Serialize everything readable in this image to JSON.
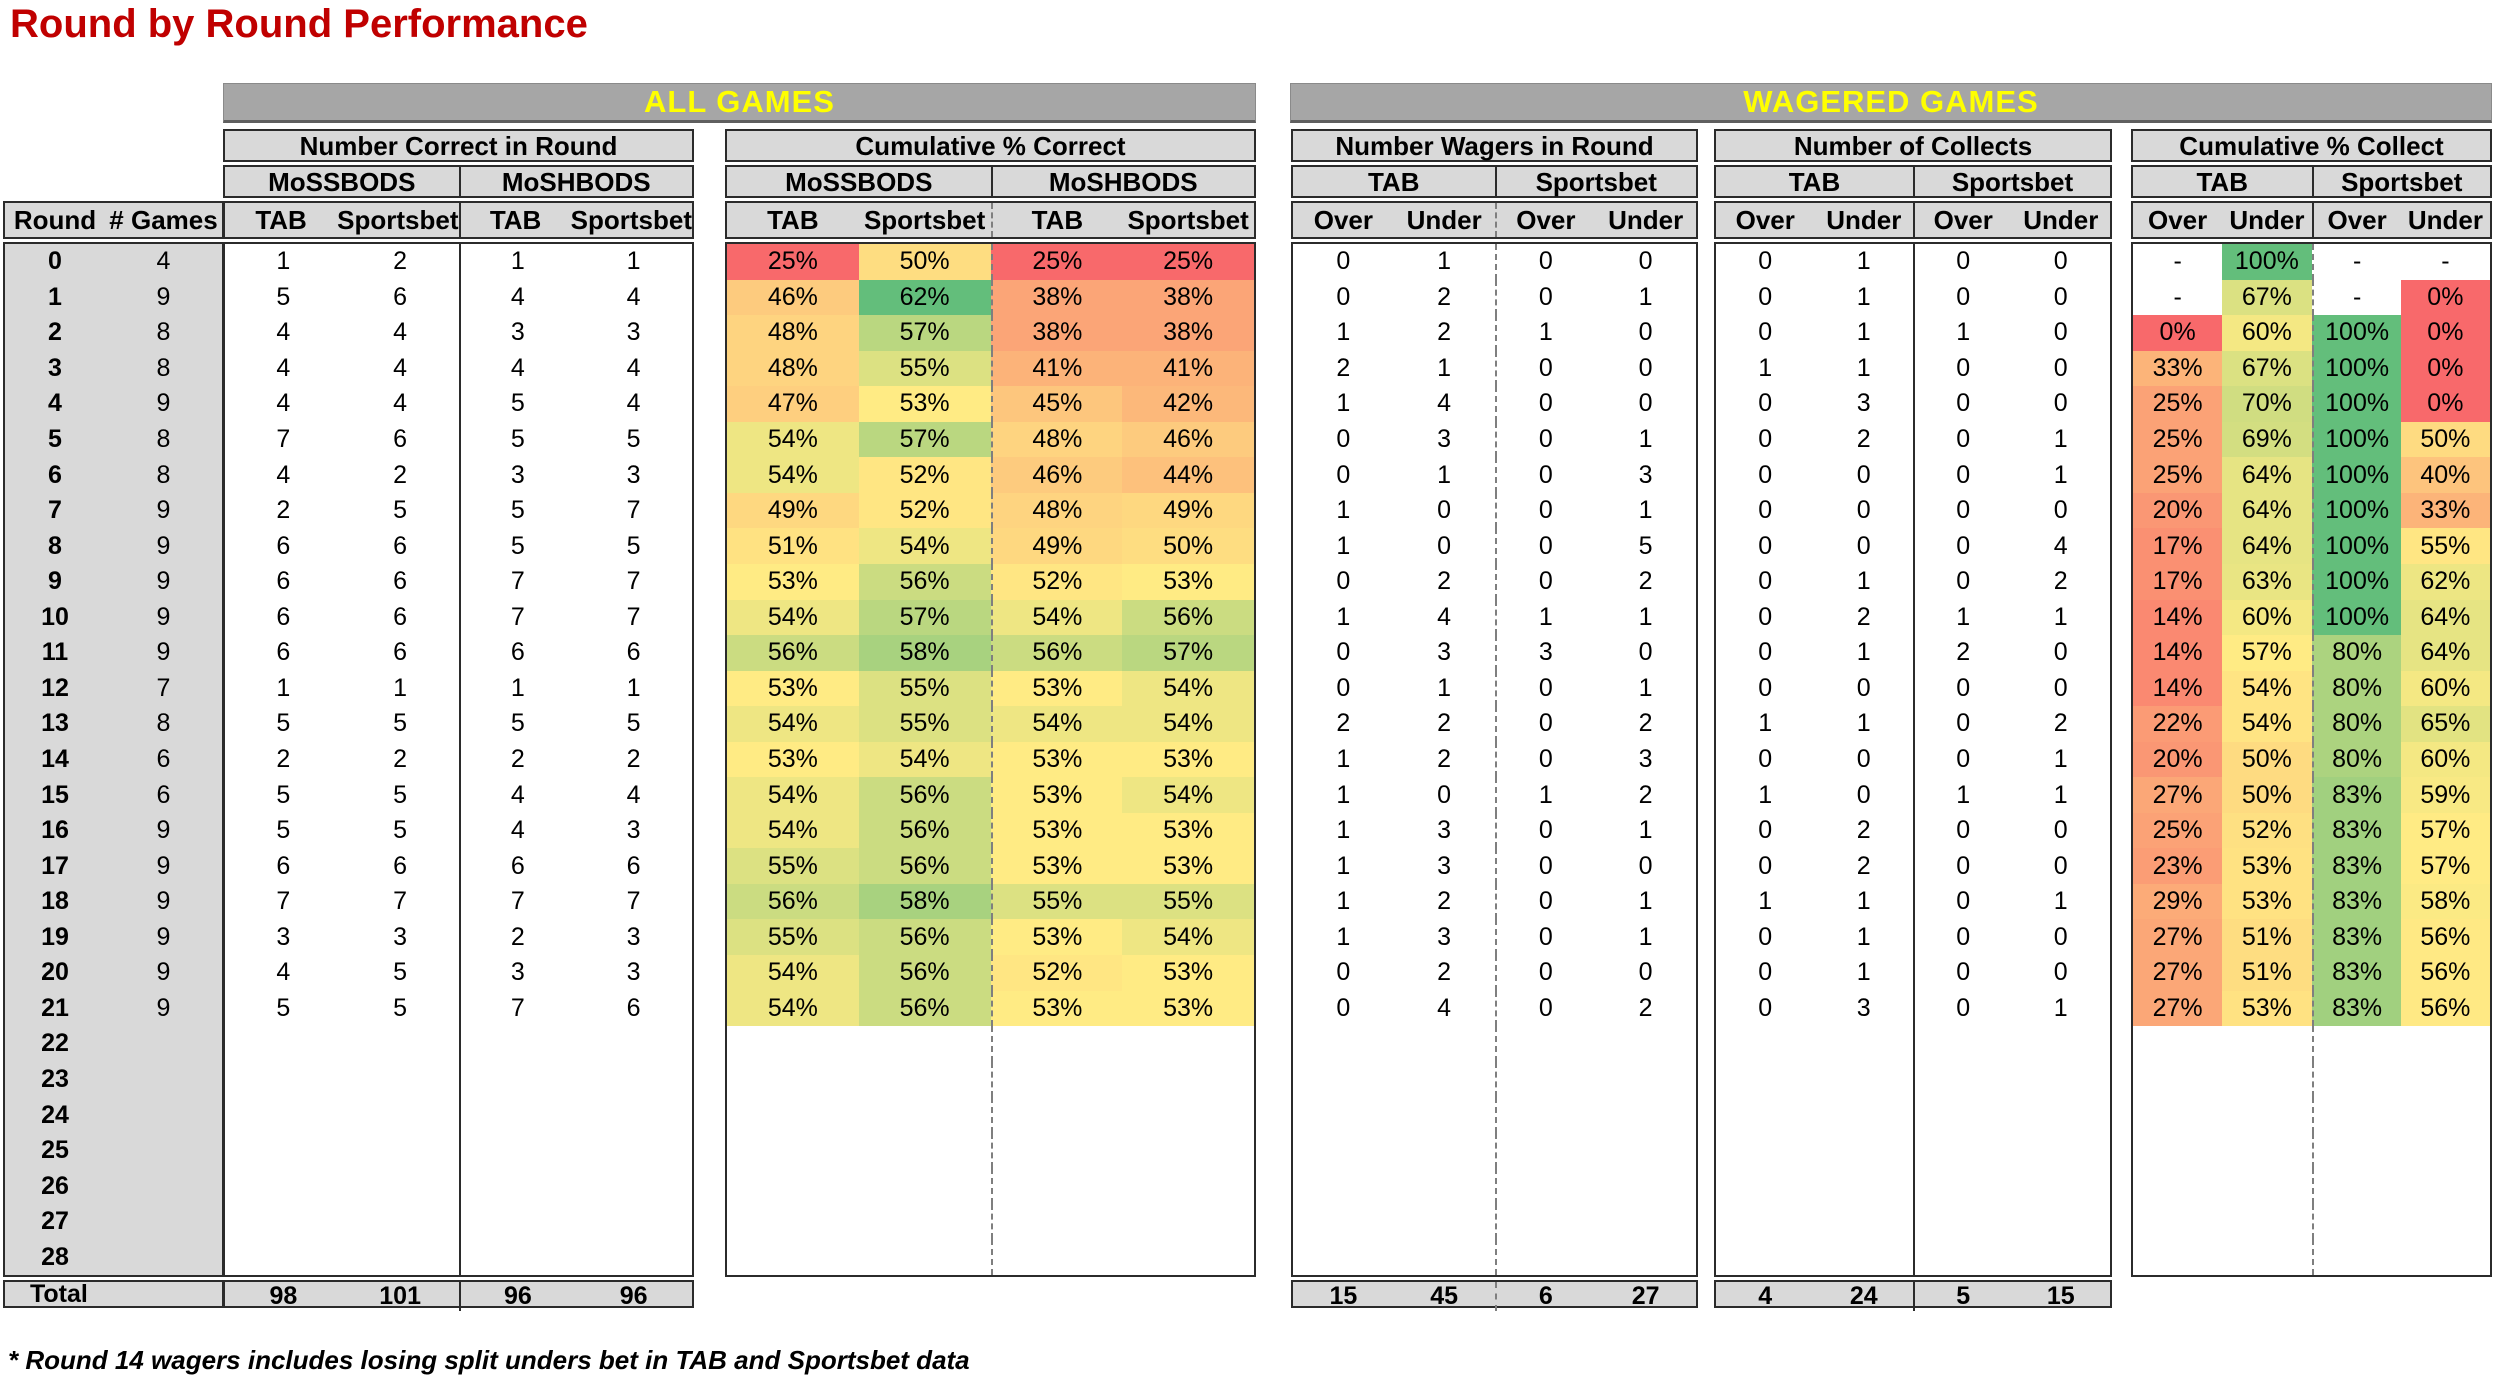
{
  "title": "Round by Round Performance",
  "bands": {
    "all_games": "ALL GAMES",
    "wagered_games": "WAGERED GAMES"
  },
  "row_header": {
    "round": "Round",
    "games": "# Games"
  },
  "sections": {
    "correct": {
      "title": "Number Correct in Round",
      "groups": [
        "MoSSBODS",
        "MoSHBODS"
      ],
      "cols": [
        "TAB",
        "Sportsbet",
        "TAB",
        "Sportsbet"
      ]
    },
    "cum_correct": {
      "title": "Cumulative % Correct",
      "groups": [
        "MoSSBODS",
        "MoSHBODS"
      ],
      "cols": [
        "TAB",
        "Sportsbet",
        "TAB",
        "Sportsbet"
      ]
    },
    "wagers": {
      "title": "Number Wagers in Round",
      "groups": [
        "TAB",
        "Sportsbet"
      ],
      "cols": [
        "Over",
        "Under",
        "Over",
        "Under"
      ]
    },
    "collects": {
      "title": "Number of Collects",
      "groups": [
        "TAB",
        "Sportsbet"
      ],
      "cols": [
        "Over",
        "Under",
        "Over",
        "Under"
      ]
    },
    "cum_collect": {
      "title": "Cumulative % Collect",
      "groups": [
        "TAB",
        "Sportsbet"
      ],
      "cols": [
        "Over",
        "Under",
        "Over",
        "Under"
      ]
    }
  },
  "chart_data": {
    "type": "heatmap",
    "note": "heat colors derive from heat_scales anchors (Excel 3-color scale red/yellow/green)"
  },
  "heat_scales": {
    "cum_correct": {
      "min": 25,
      "mid": 53,
      "max": 62
    },
    "cum_collect": {
      "min": 0,
      "mid": 57,
      "max": 100
    }
  },
  "colors": {
    "title": "#C00000",
    "band_bg": "#A6A6A6",
    "band_text": "#FFFF00",
    "header_bg": "#D9D9D9",
    "scale_red": "#F8696B",
    "scale_yellow": "#FFEB84",
    "scale_green": "#63BE7B"
  },
  "rows": [
    {
      "round": "0",
      "games": "4",
      "correct": [
        "1",
        "2",
        "1",
        "1"
      ],
      "cum_correct": [
        "25%",
        "50%",
        "25%",
        "25%"
      ],
      "wagers": [
        "0",
        "1",
        "0",
        "0"
      ],
      "collects": [
        "0",
        "1",
        "0",
        "0"
      ],
      "cum_collect": [
        "-",
        "100%",
        "-",
        "-"
      ]
    },
    {
      "round": "1",
      "games": "9",
      "correct": [
        "5",
        "6",
        "4",
        "4"
      ],
      "cum_correct": [
        "46%",
        "62%",
        "38%",
        "38%"
      ],
      "wagers": [
        "0",
        "2",
        "0",
        "1"
      ],
      "collects": [
        "0",
        "1",
        "0",
        "0"
      ],
      "cum_collect": [
        "-",
        "67%",
        "-",
        "0%"
      ]
    },
    {
      "round": "2",
      "games": "8",
      "correct": [
        "4",
        "4",
        "3",
        "3"
      ],
      "cum_correct": [
        "48%",
        "57%",
        "38%",
        "38%"
      ],
      "wagers": [
        "1",
        "2",
        "1",
        "0"
      ],
      "collects": [
        "0",
        "1",
        "1",
        "0"
      ],
      "cum_collect": [
        "0%",
        "60%",
        "100%",
        "0%"
      ]
    },
    {
      "round": "3",
      "games": "8",
      "correct": [
        "4",
        "4",
        "4",
        "4"
      ],
      "cum_correct": [
        "48%",
        "55%",
        "41%",
        "41%"
      ],
      "wagers": [
        "2",
        "1",
        "0",
        "0"
      ],
      "collects": [
        "1",
        "1",
        "0",
        "0"
      ],
      "cum_collect": [
        "33%",
        "67%",
        "100%",
        "0%"
      ]
    },
    {
      "round": "4",
      "games": "9",
      "correct": [
        "4",
        "4",
        "5",
        "4"
      ],
      "cum_correct": [
        "47%",
        "53%",
        "45%",
        "42%"
      ],
      "wagers": [
        "1",
        "4",
        "0",
        "0"
      ],
      "collects": [
        "0",
        "3",
        "0",
        "0"
      ],
      "cum_collect": [
        "25%",
        "70%",
        "100%",
        "0%"
      ]
    },
    {
      "round": "5",
      "games": "8",
      "correct": [
        "7",
        "6",
        "5",
        "5"
      ],
      "cum_correct": [
        "54%",
        "57%",
        "48%",
        "46%"
      ],
      "wagers": [
        "0",
        "3",
        "0",
        "1"
      ],
      "collects": [
        "0",
        "2",
        "0",
        "1"
      ],
      "cum_collect": [
        "25%",
        "69%",
        "100%",
        "50%"
      ]
    },
    {
      "round": "6",
      "games": "8",
      "correct": [
        "4",
        "2",
        "3",
        "3"
      ],
      "cum_correct": [
        "54%",
        "52%",
        "46%",
        "44%"
      ],
      "wagers": [
        "0",
        "1",
        "0",
        "3"
      ],
      "collects": [
        "0",
        "0",
        "0",
        "1"
      ],
      "cum_collect": [
        "25%",
        "64%",
        "100%",
        "40%"
      ]
    },
    {
      "round": "7",
      "games": "9",
      "correct": [
        "2",
        "5",
        "5",
        "7"
      ],
      "cum_correct": [
        "49%",
        "52%",
        "48%",
        "49%"
      ],
      "wagers": [
        "1",
        "0",
        "0",
        "1"
      ],
      "collects": [
        "0",
        "0",
        "0",
        "0"
      ],
      "cum_collect": [
        "20%",
        "64%",
        "100%",
        "33%"
      ]
    },
    {
      "round": "8",
      "games": "9",
      "correct": [
        "6",
        "6",
        "5",
        "5"
      ],
      "cum_correct": [
        "51%",
        "54%",
        "49%",
        "50%"
      ],
      "wagers": [
        "1",
        "0",
        "0",
        "5"
      ],
      "collects": [
        "0",
        "0",
        "0",
        "4"
      ],
      "cum_collect": [
        "17%",
        "64%",
        "100%",
        "55%"
      ]
    },
    {
      "round": "9",
      "games": "9",
      "correct": [
        "6",
        "6",
        "7",
        "7"
      ],
      "cum_correct": [
        "53%",
        "56%",
        "52%",
        "53%"
      ],
      "wagers": [
        "0",
        "2",
        "0",
        "2"
      ],
      "collects": [
        "0",
        "1",
        "0",
        "2"
      ],
      "cum_collect": [
        "17%",
        "63%",
        "100%",
        "62%"
      ]
    },
    {
      "round": "10",
      "games": "9",
      "correct": [
        "6",
        "6",
        "7",
        "7"
      ],
      "cum_correct": [
        "54%",
        "57%",
        "54%",
        "56%"
      ],
      "wagers": [
        "1",
        "4",
        "1",
        "1"
      ],
      "collects": [
        "0",
        "2",
        "1",
        "1"
      ],
      "cum_collect": [
        "14%",
        "60%",
        "100%",
        "64%"
      ]
    },
    {
      "round": "11",
      "games": "9",
      "correct": [
        "6",
        "6",
        "6",
        "6"
      ],
      "cum_correct": [
        "56%",
        "58%",
        "56%",
        "57%"
      ],
      "wagers": [
        "0",
        "3",
        "3",
        "0"
      ],
      "collects": [
        "0",
        "1",
        "2",
        "0"
      ],
      "cum_collect": [
        "14%",
        "57%",
        "80%",
        "64%"
      ]
    },
    {
      "round": "12",
      "games": "7",
      "correct": [
        "1",
        "1",
        "1",
        "1"
      ],
      "cum_correct": [
        "53%",
        "55%",
        "53%",
        "54%"
      ],
      "wagers": [
        "0",
        "1",
        "0",
        "1"
      ],
      "collects": [
        "0",
        "0",
        "0",
        "0"
      ],
      "cum_collect": [
        "14%",
        "54%",
        "80%",
        "60%"
      ]
    },
    {
      "round": "13",
      "games": "8",
      "correct": [
        "5",
        "5",
        "5",
        "5"
      ],
      "cum_correct": [
        "54%",
        "55%",
        "54%",
        "54%"
      ],
      "wagers": [
        "2",
        "2",
        "0",
        "2"
      ],
      "collects": [
        "1",
        "1",
        "0",
        "2"
      ],
      "cum_collect": [
        "22%",
        "54%",
        "80%",
        "65%"
      ]
    },
    {
      "round": "14",
      "games": "6",
      "correct": [
        "2",
        "2",
        "2",
        "2"
      ],
      "cum_correct": [
        "53%",
        "54%",
        "53%",
        "53%"
      ],
      "wagers": [
        "1",
        "2",
        "0",
        "3"
      ],
      "collects": [
        "0",
        "0",
        "0",
        "1"
      ],
      "cum_collect": [
        "20%",
        "50%",
        "80%",
        "60%"
      ]
    },
    {
      "round": "15",
      "games": "6",
      "correct": [
        "5",
        "5",
        "4",
        "4"
      ],
      "cum_correct": [
        "54%",
        "56%",
        "53%",
        "54%"
      ],
      "wagers": [
        "1",
        "0",
        "1",
        "2"
      ],
      "collects": [
        "1",
        "0",
        "1",
        "1"
      ],
      "cum_collect": [
        "27%",
        "50%",
        "83%",
        "59%"
      ]
    },
    {
      "round": "16",
      "games": "9",
      "correct": [
        "5",
        "5",
        "4",
        "3"
      ],
      "cum_correct": [
        "54%",
        "56%",
        "53%",
        "53%"
      ],
      "wagers": [
        "1",
        "3",
        "0",
        "1"
      ],
      "collects": [
        "0",
        "2",
        "0",
        "0"
      ],
      "cum_collect": [
        "25%",
        "52%",
        "83%",
        "57%"
      ]
    },
    {
      "round": "17",
      "games": "9",
      "correct": [
        "6",
        "6",
        "6",
        "6"
      ],
      "cum_correct": [
        "55%",
        "56%",
        "53%",
        "53%"
      ],
      "wagers": [
        "1",
        "3",
        "0",
        "0"
      ],
      "collects": [
        "0",
        "2",
        "0",
        "0"
      ],
      "cum_collect": [
        "23%",
        "53%",
        "83%",
        "57%"
      ]
    },
    {
      "round": "18",
      "games": "9",
      "correct": [
        "7",
        "7",
        "7",
        "7"
      ],
      "cum_correct": [
        "56%",
        "58%",
        "55%",
        "55%"
      ],
      "wagers": [
        "1",
        "2",
        "0",
        "1"
      ],
      "collects": [
        "1",
        "1",
        "0",
        "1"
      ],
      "cum_collect": [
        "29%",
        "53%",
        "83%",
        "58%"
      ]
    },
    {
      "round": "19",
      "games": "9",
      "correct": [
        "3",
        "3",
        "2",
        "3"
      ],
      "cum_correct": [
        "55%",
        "56%",
        "53%",
        "54%"
      ],
      "wagers": [
        "1",
        "3",
        "0",
        "1"
      ],
      "collects": [
        "0",
        "1",
        "0",
        "0"
      ],
      "cum_collect": [
        "27%",
        "51%",
        "83%",
        "56%"
      ]
    },
    {
      "round": "20",
      "games": "9",
      "correct": [
        "4",
        "5",
        "3",
        "3"
      ],
      "cum_correct": [
        "54%",
        "56%",
        "52%",
        "53%"
      ],
      "wagers": [
        "0",
        "2",
        "0",
        "0"
      ],
      "collects": [
        "0",
        "1",
        "0",
        "0"
      ],
      "cum_collect": [
        "27%",
        "51%",
        "83%",
        "56%"
      ]
    },
    {
      "round": "21",
      "games": "9",
      "correct": [
        "5",
        "5",
        "7",
        "6"
      ],
      "cum_correct": [
        "54%",
        "56%",
        "53%",
        "53%"
      ],
      "wagers": [
        "0",
        "4",
        "0",
        "2"
      ],
      "collects": [
        "0",
        "3",
        "0",
        "1"
      ],
      "cum_collect": [
        "27%",
        "53%",
        "83%",
        "56%"
      ]
    },
    {
      "round": "22",
      "games": "",
      "correct": [],
      "cum_correct": [],
      "wagers": [],
      "collects": [],
      "cum_collect": []
    },
    {
      "round": "23",
      "games": "",
      "correct": [],
      "cum_correct": [],
      "wagers": [],
      "collects": [],
      "cum_collect": []
    },
    {
      "round": "24",
      "games": "",
      "correct": [],
      "cum_correct": [],
      "wagers": [],
      "collects": [],
      "cum_collect": []
    },
    {
      "round": "25",
      "games": "",
      "correct": [],
      "cum_correct": [],
      "wagers": [],
      "collects": [],
      "cum_collect": []
    },
    {
      "round": "26",
      "games": "",
      "correct": [],
      "cum_correct": [],
      "wagers": [],
      "collects": [],
      "cum_collect": []
    },
    {
      "round": "27",
      "games": "",
      "correct": [],
      "cum_correct": [],
      "wagers": [],
      "collects": [],
      "cum_collect": []
    },
    {
      "round": "28",
      "games": "",
      "correct": [],
      "cum_correct": [],
      "wagers": [],
      "collects": [],
      "cum_collect": []
    }
  ],
  "totals": {
    "label": "Total",
    "correct": [
      "98",
      "101",
      "96",
      "96"
    ],
    "wagers": [
      "15",
      "45",
      "6",
      "27"
    ],
    "collects": [
      "4",
      "24",
      "5",
      "15"
    ]
  },
  "footnote": "* Round 14 wagers includes losing split unders bet in TAB and Sportsbet data"
}
